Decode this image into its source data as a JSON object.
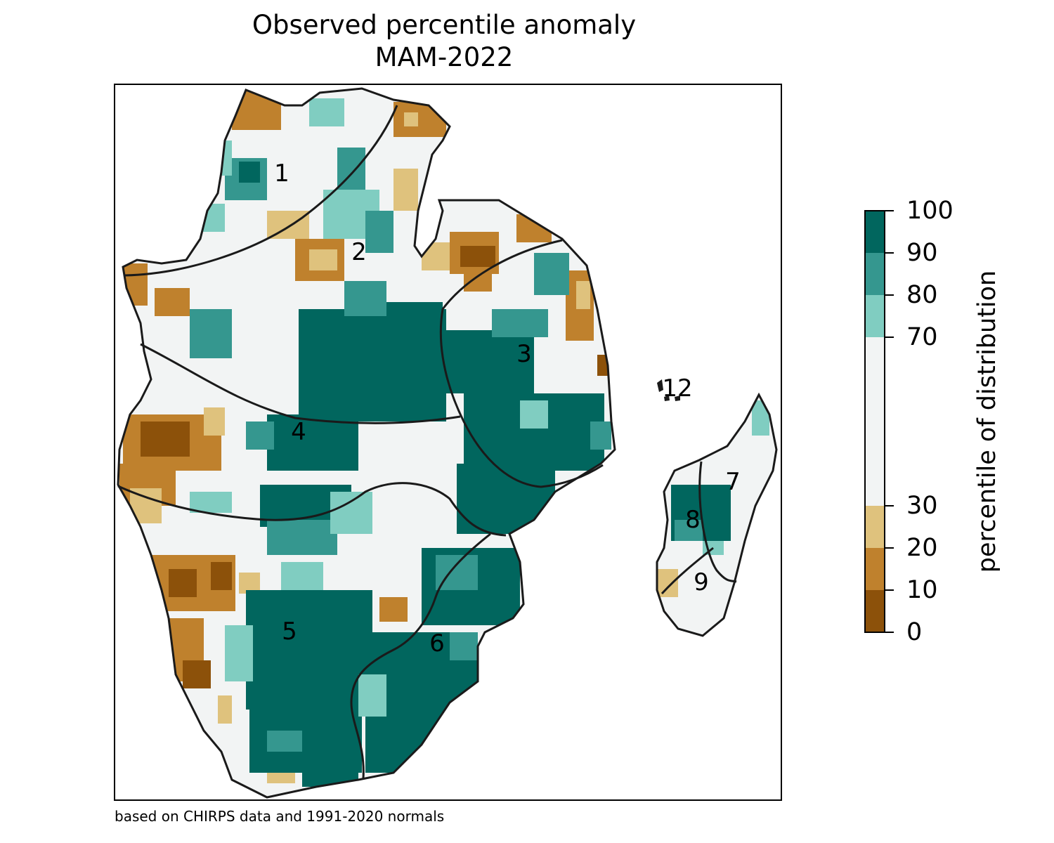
{
  "title": {
    "line1": "Observed percentile anomaly",
    "line2": "MAM-2022"
  },
  "credit": "based on CHIRPS data and 1991-2020 normals",
  "regions": [
    {
      "id": "1",
      "label": "1"
    },
    {
      "id": "2",
      "label": "2"
    },
    {
      "id": "3",
      "label": "3"
    },
    {
      "id": "4",
      "label": "4"
    },
    {
      "id": "5",
      "label": "5"
    },
    {
      "id": "6",
      "label": "6"
    },
    {
      "id": "7",
      "label": "7"
    },
    {
      "id": "8",
      "label": "8"
    },
    {
      "id": "9",
      "label": "9"
    },
    {
      "id": "12",
      "label": "12"
    }
  ],
  "colorbar": {
    "label": "percentile of distribution",
    "ticks": [
      "0",
      "10",
      "20",
      "30",
      "70",
      "80",
      "90",
      "100"
    ],
    "bins": [
      {
        "range": "0-10",
        "color": "#8c510a"
      },
      {
        "range": "10-20",
        "color": "#bf812d"
      },
      {
        "range": "20-30",
        "color": "#dfc27d"
      },
      {
        "range": "30-70",
        "color": "#f2f4f4"
      },
      {
        "range": "70-80",
        "color": "#80cdc1"
      },
      {
        "range": "80-90",
        "color": "#35978f"
      },
      {
        "range": "90-100",
        "color": "#01665e"
      }
    ]
  }
}
